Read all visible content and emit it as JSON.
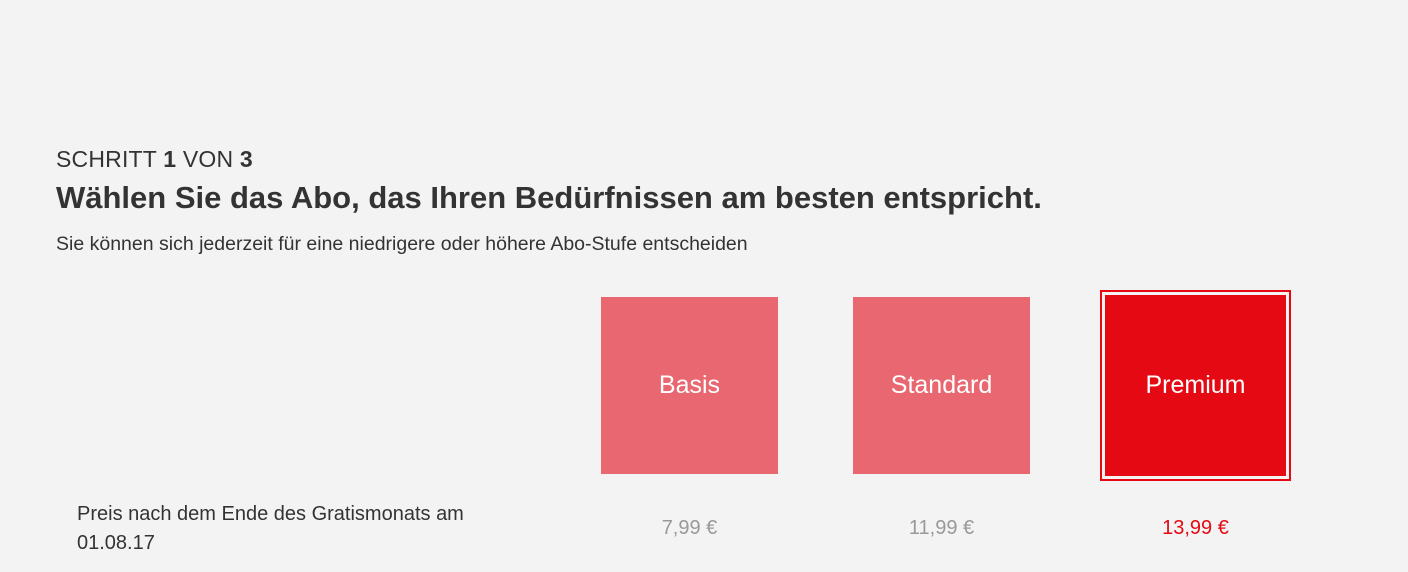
{
  "step": {
    "word": "SCHRITT",
    "current": "1",
    "of": "VON",
    "total": "3"
  },
  "title": "Wählen Sie das Abo, das Ihren Bedürfnissen am besten entspricht.",
  "subtitle": "Sie können sich jederzeit für eine niedrigere oder höhere Abo-Stufe entscheiden",
  "plans": [
    {
      "name": "Basis",
      "price": "7,99 €",
      "selected": false
    },
    {
      "name": "Standard",
      "price": "11,99 €",
      "selected": false
    },
    {
      "name": "Premium",
      "price": "13,99 €",
      "selected": true
    }
  ],
  "price_row": {
    "label": "Preis nach dem Ende des Gratismonats am 01.08.17"
  },
  "colors": {
    "accent": "#e50914",
    "unselected_plan": "#e96770",
    "muted_price": "#999999",
    "background": "#f3f3f3"
  }
}
